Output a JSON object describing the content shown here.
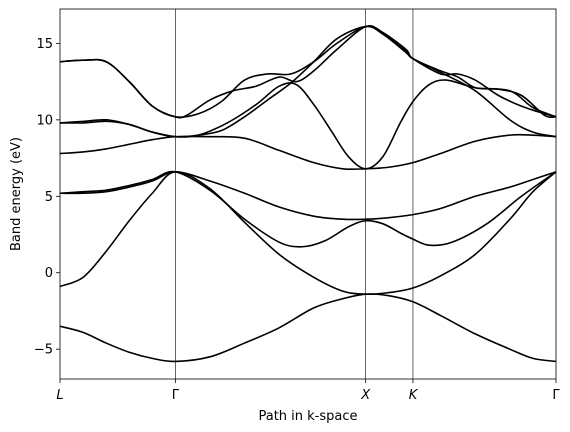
{
  "chart_data": {
    "type": "line",
    "title": "",
    "xlabel": "Path in k-space",
    "ylabel": "Band energy (eV)",
    "xlim": [
      0,
      4.3
    ],
    "ylim": [
      -6.95,
      17.25
    ],
    "grid": false,
    "legend": null,
    "line_color": "#000000",
    "special_points": [
      {
        "label": "L",
        "x": 0
      },
      {
        "label": "Γ",
        "x": 1.0
      },
      {
        "label": "X",
        "x": 2.65
      },
      {
        "label": "K",
        "x": 3.06
      },
      {
        "label": "Γ",
        "x": 4.3
      }
    ],
    "y_ticks": [
      -5,
      0,
      5,
      10,
      15
    ],
    "bands": [
      {
        "x": [
          0,
          0.2,
          0.4,
          0.6,
          0.8,
          1.0,
          1.3,
          1.6,
          1.9,
          2.2,
          2.45,
          2.65,
          2.85,
          3.06,
          3.3,
          3.6,
          3.9,
          4.1,
          4.3
        ],
        "y": [
          -3.5,
          -3.9,
          -4.6,
          -5.2,
          -5.6,
          -5.8,
          -5.5,
          -4.6,
          -3.6,
          -2.3,
          -1.7,
          -1.4,
          -1.5,
          -1.9,
          -2.8,
          -4.0,
          -5.0,
          -5.6,
          -5.8
        ]
      },
      {
        "x": [
          0,
          0.2,
          0.4,
          0.6,
          0.8,
          1.0,
          1.3,
          1.6,
          1.9,
          2.2,
          2.45,
          2.65,
          2.85,
          3.06,
          3.3,
          3.6,
          3.9,
          4.1,
          4.3
        ],
        "y": [
          -0.9,
          -0.3,
          1.4,
          3.4,
          5.2,
          6.6,
          5.5,
          3.3,
          1.2,
          -0.3,
          -1.2,
          -1.4,
          -1.3,
          -1.0,
          -0.2,
          1.2,
          3.5,
          5.3,
          6.6
        ]
      },
      {
        "x": [
          0,
          0.2,
          0.4,
          0.6,
          0.8,
          1.0,
          1.3,
          1.6,
          1.9,
          2.1,
          2.3,
          2.5,
          2.65,
          2.8,
          2.95,
          3.06,
          3.2,
          3.4,
          3.7,
          4.0,
          4.3
        ],
        "y": [
          5.2,
          5.3,
          5.4,
          5.7,
          6.1,
          6.6,
          5.4,
          3.5,
          2.0,
          1.7,
          2.1,
          3.0,
          3.4,
          3.2,
          2.6,
          2.2,
          1.8,
          2.0,
          3.2,
          5.0,
          6.6
        ]
      },
      {
        "x": [
          0,
          0.2,
          0.4,
          0.6,
          0.8,
          1.0,
          1.3,
          1.6,
          1.9,
          2.2,
          2.45,
          2.65,
          2.85,
          3.06,
          3.3,
          3.6,
          3.9,
          4.1,
          4.3
        ],
        "y": [
          5.2,
          5.2,
          5.3,
          5.6,
          6.0,
          6.6,
          6.0,
          5.2,
          4.3,
          3.7,
          3.5,
          3.5,
          3.6,
          3.8,
          4.2,
          5.0,
          5.6,
          6.1,
          6.6
        ]
      },
      {
        "x": [
          0,
          0.2,
          0.4,
          0.6,
          0.8,
          1.0,
          1.3,
          1.6,
          1.9,
          2.2,
          2.45,
          2.65,
          2.85,
          3.06,
          3.3,
          3.6,
          3.9,
          4.1,
          4.3
        ],
        "y": [
          7.8,
          7.9,
          8.1,
          8.4,
          8.7,
          8.9,
          8.9,
          8.8,
          8.0,
          7.2,
          6.8,
          6.8,
          6.9,
          7.2,
          7.8,
          8.6,
          9.0,
          9.0,
          8.9
        ]
      },
      {
        "x": [
          0,
          0.2,
          0.4,
          0.6,
          0.8,
          1.0,
          1.2,
          1.45,
          1.7,
          1.9,
          2.05,
          2.2,
          2.35,
          2.5,
          2.65,
          2.8,
          2.95,
          3.06,
          3.2,
          3.35,
          3.6,
          3.9,
          4.1,
          4.3
        ],
        "y": [
          9.8,
          9.9,
          10.0,
          9.7,
          9.2,
          8.9,
          9.0,
          9.8,
          11.0,
          12.2,
          12.3,
          11.0,
          9.3,
          7.6,
          6.8,
          7.6,
          9.8,
          11.2,
          12.3,
          12.6,
          12.1,
          11.9,
          10.8,
          10.2
        ]
      },
      {
        "x": [
          0,
          0.2,
          0.4,
          0.6,
          0.8,
          1.0,
          1.2,
          1.4,
          1.6,
          1.8,
          2.0,
          2.2,
          2.4,
          2.65,
          2.8,
          3.0,
          3.06,
          3.3,
          3.6,
          3.9,
          4.1,
          4.3
        ],
        "y": [
          9.8,
          9.8,
          9.9,
          9.7,
          9.2,
          8.9,
          9.0,
          9.3,
          10.2,
          11.3,
          12.4,
          13.8,
          15.3,
          16.1,
          15.6,
          14.4,
          14.0,
          13.1,
          11.9,
          10.0,
          9.2,
          8.9
        ]
      },
      {
        "x": [
          0,
          0.2,
          0.4,
          0.6,
          0.8,
          1.0,
          1.1,
          1.3,
          1.5,
          1.7,
          1.9,
          2.05,
          2.2,
          2.4,
          2.65,
          2.8,
          3.0,
          3.06,
          3.3,
          3.45,
          3.6,
          3.8,
          4.0,
          4.2,
          4.3
        ],
        "y": [
          13.8,
          13.9,
          13.8,
          12.5,
          10.9,
          10.2,
          10.3,
          11.3,
          11.9,
          12.2,
          12.8,
          12.5,
          13.2,
          14.6,
          16.1,
          15.7,
          14.6,
          14.0,
          13.2,
          12.8,
          12.1,
          12.0,
          11.6,
          10.3,
          10.2
        ]
      },
      {
        "x": [
          0,
          0.2,
          0.4,
          0.6,
          0.8,
          1.0,
          1.2,
          1.4,
          1.6,
          1.8,
          2.0,
          2.2,
          2.4,
          2.65,
          2.8,
          3.0,
          3.06,
          3.3,
          3.45,
          3.6,
          3.8,
          4.0,
          4.2,
          4.3
        ],
        "y": [
          13.8,
          13.9,
          13.8,
          12.5,
          10.9,
          10.2,
          10.4,
          11.2,
          12.6,
          13.0,
          13.0,
          13.8,
          15.0,
          16.1,
          15.7,
          14.5,
          14.0,
          13.0,
          13.0,
          12.6,
          11.6,
          10.9,
          10.4,
          10.2
        ]
      }
    ]
  }
}
